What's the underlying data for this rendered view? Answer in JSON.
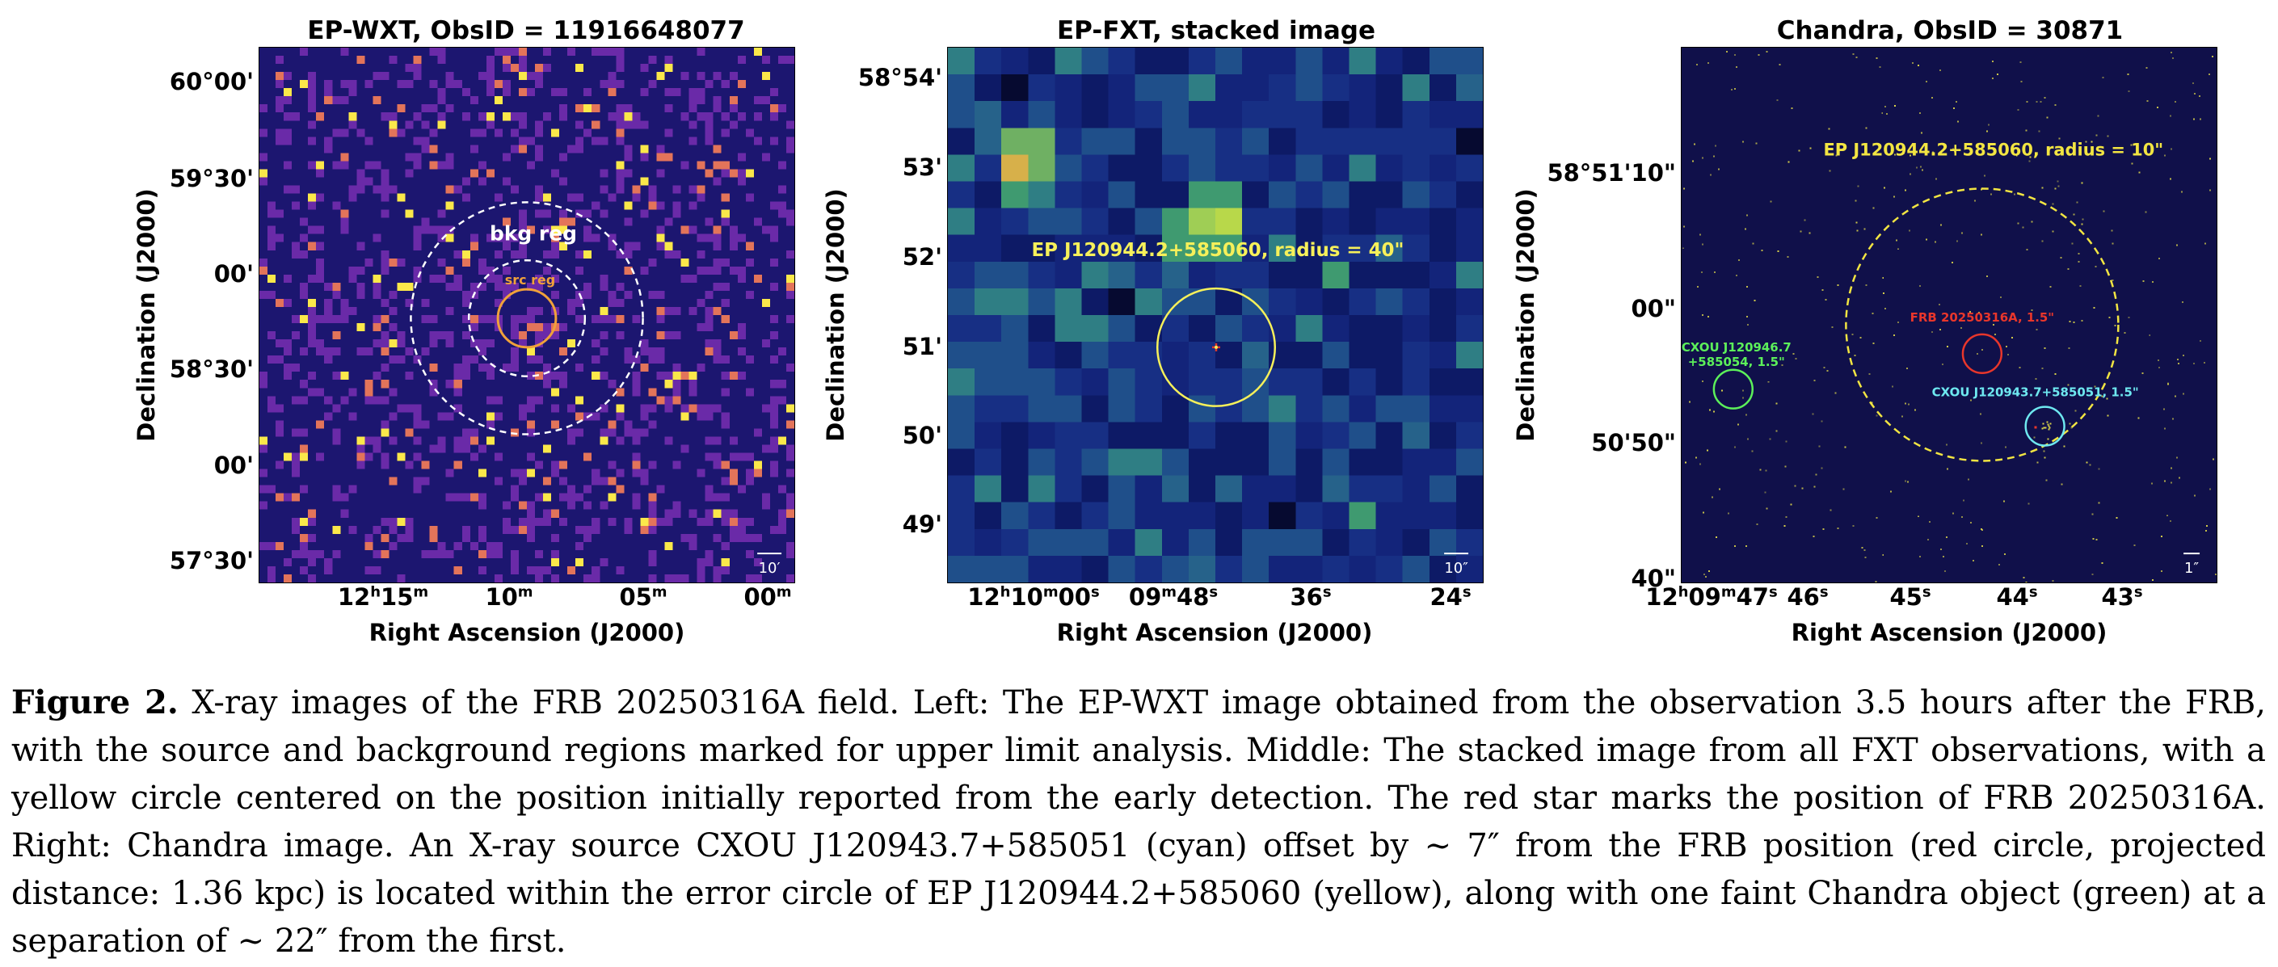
{
  "panels": [
    {
      "id": "wxt",
      "title": "EP-WXT, ObsID = 11916648077",
      "ylabel": "Declination (J2000)",
      "xlabel": "Right Ascension (J2000)",
      "yticks": [
        "60°00'",
        "59°30'",
        "00'",
        "58°30'",
        "00'",
        "57°30'"
      ],
      "xticks": [
        {
          "main": "12",
          "sup1": "h",
          "mid": "15",
          "sup2": "m"
        },
        {
          "main": "10",
          "sup1": "m",
          "mid": "",
          "sup2": ""
        },
        {
          "main": "05",
          "sup1": "m",
          "mid": "",
          "sup2": ""
        },
        {
          "main": "00",
          "sup1": "m",
          "mid": "",
          "sup2": ""
        }
      ],
      "scale_label": "10′",
      "region_labels": {
        "bkg": "bkg reg",
        "src": "src reg"
      },
      "colors": {
        "background": "#1c1670",
        "pixel": "#6a2aa8",
        "hot": "#e3745a",
        "bright": "#fbe84a",
        "src_circle": "#f0a13a",
        "bkg_circle": "#ffffff"
      }
    },
    {
      "id": "fxt",
      "title": "EP-FXT, stacked image",
      "ylabel": "Declination (J2000)",
      "xlabel": "Right Ascension (J2000)",
      "yticks": [
        "58°54'",
        "53'",
        "52'",
        "51'",
        "50'",
        "49'"
      ],
      "xticks": [
        {
          "main": "12",
          "sup1": "h",
          "mid": "10",
          "sup2": "m",
          "tail": "00",
          "sup3": "s"
        },
        {
          "main": "09",
          "sup1": "m",
          "mid": "48",
          "sup2": "s"
        },
        {
          "main": "36",
          "sup1": "s",
          "mid": "",
          "sup2": ""
        },
        {
          "main": "24",
          "sup1": "s",
          "mid": "",
          "sup2": ""
        }
      ],
      "scale_label": "10″",
      "region_labels": {
        "ep": "EP J120944.2+585060, radius = 40\""
      },
      "colors": {
        "background": "#13247a",
        "mid": "#1f4f8a",
        "green": "#3f9a70",
        "bright": "#9fce55",
        "circle": "#f6f05a",
        "star": "#e23a2a"
      }
    },
    {
      "id": "chandra",
      "title": "Chandra, ObsID = 30871",
      "ylabel": "Declination (J2000)",
      "xlabel": "Right Ascension (J2000)",
      "yticks": [
        "58°51'10\"",
        "00\"",
        "50'50\"",
        "40\""
      ],
      "xticks": [
        {
          "main": "12",
          "sup1": "h",
          "mid": "09",
          "sup2": "m",
          "tail": "47",
          "sup3": "s"
        },
        {
          "main": "46",
          "sup1": "s",
          "mid": "",
          "sup2": ""
        },
        {
          "main": "45",
          "sup1": "s",
          "mid": "",
          "sup2": ""
        },
        {
          "main": "44",
          "sup1": "s",
          "mid": "",
          "sup2": ""
        },
        {
          "main": "43",
          "sup1": "s",
          "mid": "",
          "sup2": ""
        }
      ],
      "scale_label": "1″",
      "region_labels": {
        "ep": "EP J120944.2+585060, radius = 10\"",
        "frb": "FRB 20250316A, 1.5\"",
        "green1": "CXOU J120946.7",
        "green2": "+585054, 1.5\"",
        "cyan": "CXOU J120943.7+585051, 1.5\""
      },
      "colors": {
        "background": "#10104a",
        "dots": "#d9d24a",
        "ep_circle": "#f2e542",
        "frb_circle": "#e8362b",
        "green_circle": "#5cf05a",
        "cyan_circle": "#6ee8f0"
      }
    }
  ],
  "caption": {
    "label": "Figure 2.",
    "text": " X-ray images of the FRB 20250316A field. Left: The EP-WXT image obtained from the observation 3.5 hours after the FRB, with the source and background regions marked for upper limit analysis. Middle: The stacked image from all FXT observations, with a yellow circle centered on the position initially reported from the early detection. The red star marks the position of FRB 20250316A. Right: Chandra image. An X-ray source CXOU J120943.7+585051 (cyan) offset by ∼ 7″ from the FRB position (red circle, projected distance: 1.36 kpc) is located within the error circle of EP J120944.2+585060 (yellow), along with one faint Chandra object (green) at a separation of ∼ 22″ from the first."
  }
}
